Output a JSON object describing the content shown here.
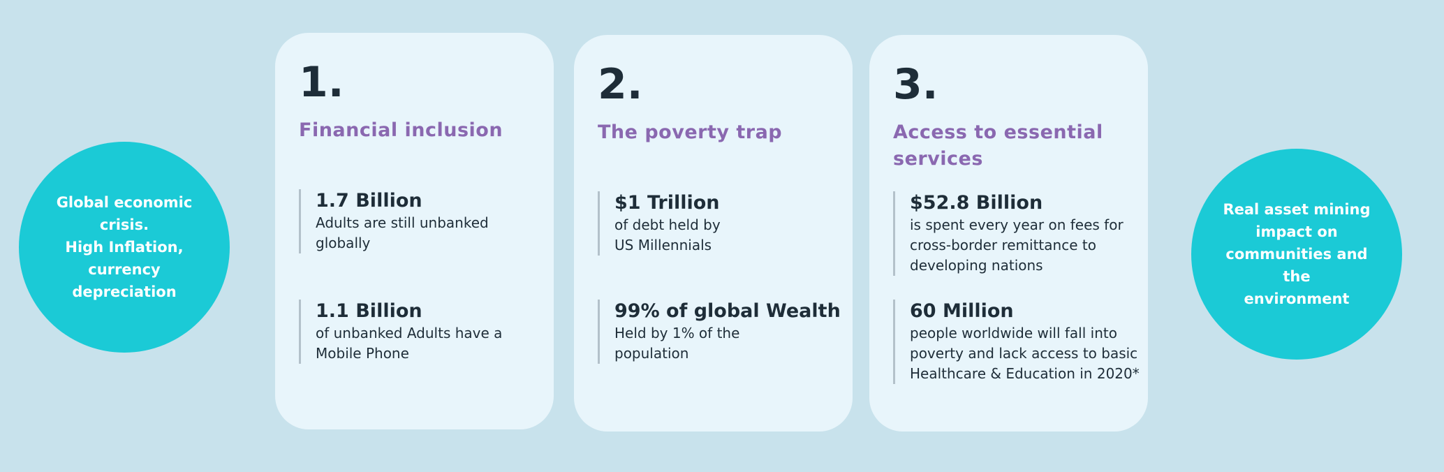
{
  "left_circle": {
    "lines": [
      "Global economic",
      "crisis.",
      "High Inflation,",
      "currency",
      "depreciation"
    ]
  },
  "right_circle": {
    "lines": [
      "Real asset  mining",
      "impact on",
      "communities and the",
      "environment"
    ]
  },
  "cards": [
    {
      "number": "1.",
      "title": "Financial inclusion",
      "stats": [
        {
          "value": "1.7 Billion",
          "description": "Adults are still unbanked\nglobally"
        },
        {
          "value": "1.1 Billion",
          "description": "of unbanked Adults have a\nMobile Phone"
        }
      ]
    },
    {
      "number": "2.",
      "title": "The poverty trap",
      "stats": [
        {
          "value": "$1 Trillion",
          "description": "of debt held by\nUS Millennials"
        },
        {
          "value": "99% of global Wealth",
          "description": "Held by 1% of the\npopulation"
        }
      ]
    },
    {
      "number": "3.",
      "title": "Access to essential services",
      "stats": [
        {
          "value": "$52.8 Billion",
          "description": "is spent every year on fees for\ncross-border remittance to\ndeveloping nations"
        },
        {
          "value": "60 Million",
          "description": "people worldwide will fall into\npoverty and lack access to basic\nHealthcare & Education in 2020*"
        }
      ]
    }
  ],
  "colors": {
    "background": "#c8e2ec",
    "circle": "#1bcad6",
    "card": "#e8f5fb",
    "title_accent": "#8a68b0",
    "text_dark": "#1e2d38"
  }
}
